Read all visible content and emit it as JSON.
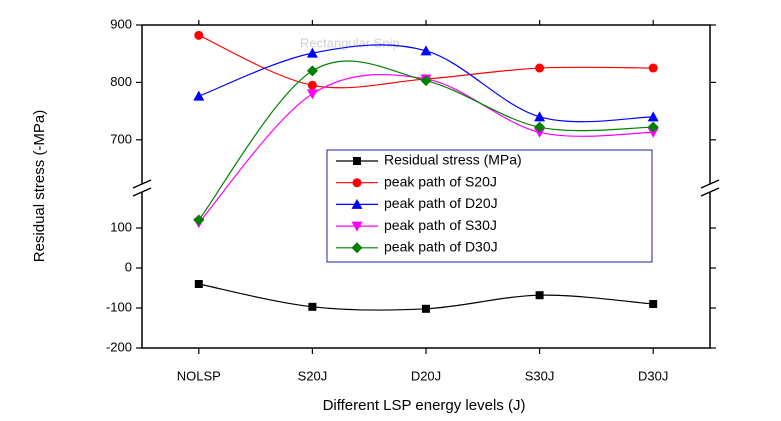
{
  "chart_data": {
    "type": "line",
    "watermark": "Rectangular Snip",
    "x_label": "Different LSP energy levels (J)",
    "y_label": "Residual stress (-MPa)",
    "categories": [
      "NOLSP",
      "S20J",
      "D20J",
      "S30J",
      "D30J"
    ],
    "y_segments": [
      {
        "ylim": [
          -200,
          180
        ],
        "yticks": [
          -200,
          -100,
          0,
          100
        ]
      },
      {
        "ylim": [
          630,
          900
        ],
        "yticks": [
          700,
          800,
          900
        ]
      }
    ],
    "series": [
      {
        "name": "Residual stress (MPa)",
        "color": "#000000",
        "marker": "square",
        "values": [
          -40,
          -97,
          -102,
          -68,
          -90
        ]
      },
      {
        "name": "peak path of S20J",
        "color": "#ff0000",
        "marker": "circle",
        "values": [
          882,
          795,
          806,
          825,
          825
        ]
      },
      {
        "name": "peak path of D20J",
        "color": "#0000ff",
        "marker": "triangle-up",
        "values": [
          776,
          851,
          855,
          740,
          740
        ]
      },
      {
        "name": "peak path of S30J",
        "color": "#ff00ff",
        "marker": "triangle-down",
        "values": [
          113,
          780,
          806,
          713,
          713
        ]
      },
      {
        "name": "peak path of D30J",
        "color": "#008000",
        "marker": "diamond",
        "values": [
          120,
          820,
          803,
          722,
          722
        ]
      }
    ]
  }
}
